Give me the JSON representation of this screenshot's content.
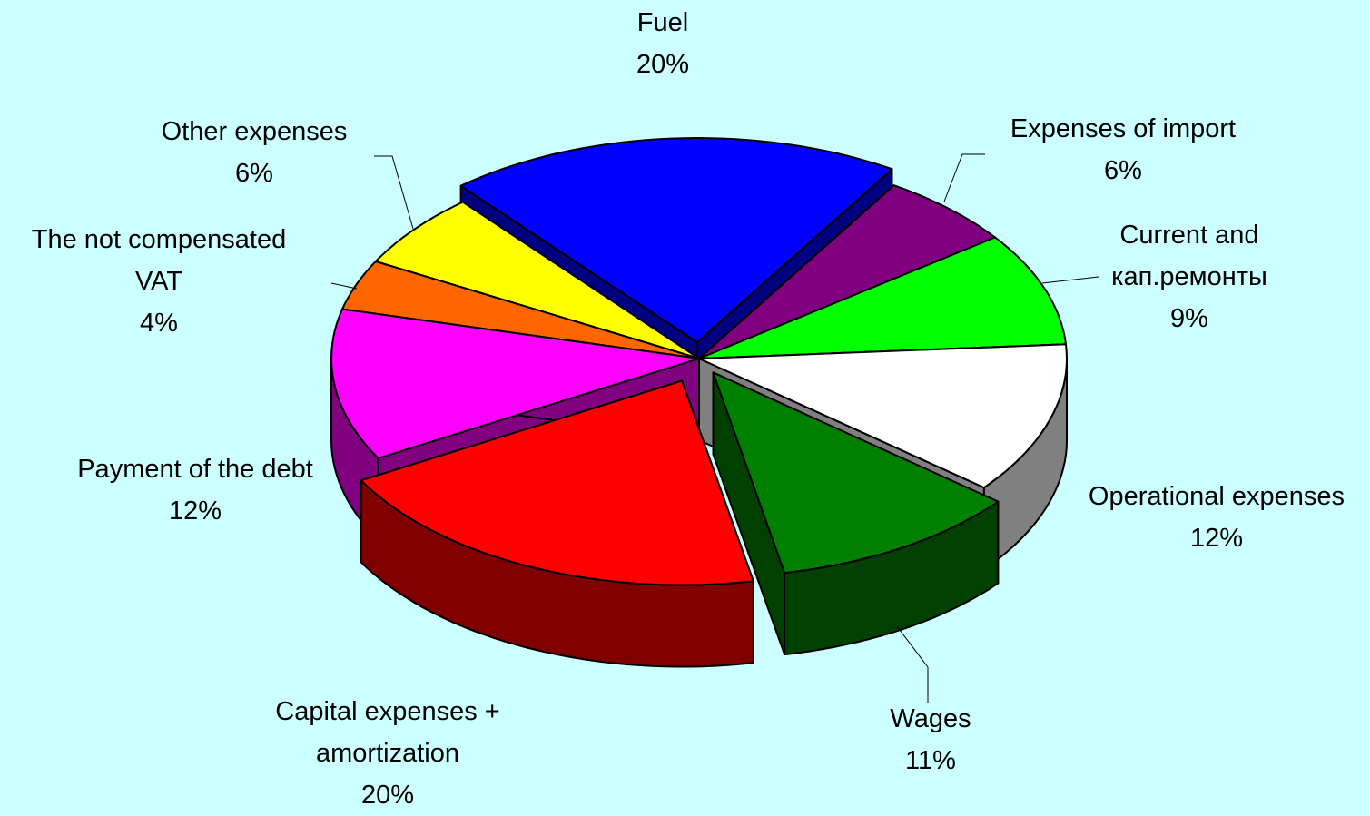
{
  "chart_data": {
    "type": "pie",
    "categories": [
      "Fuel",
      "Expenses of import",
      "Current and кап.ремонты",
      "Operational expenses",
      "Wages",
      "Capital expenses + amortization",
      "Payment of the debt",
      "The not compensated VAT",
      "Other expenses"
    ],
    "values": [
      20,
      6,
      9,
      12,
      11,
      20,
      12,
      4,
      6
    ],
    "value_labels": [
      "20%",
      "6%",
      "9%",
      "12%",
      "11%",
      "20%",
      "12%",
      "4%",
      "6%"
    ],
    "colors": [
      "#0000ff",
      "#800080",
      "#00ff00",
      "#ffffff",
      "#008000",
      "#ff0000",
      "#ff00ff",
      "#ff6600",
      "#ffff00"
    ]
  }
}
